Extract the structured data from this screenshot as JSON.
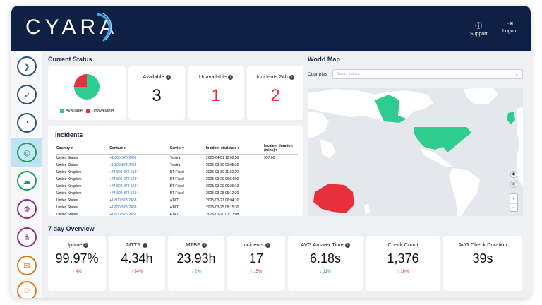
{
  "header": {
    "logo_text": "CYARA",
    "support_label": "Support",
    "logout_label": "Logout"
  },
  "colors": {
    "header_bg": "#0e2145",
    "available": "#2ecc8f",
    "unavailable": "#e8303c",
    "accent": "#2a6fb5"
  },
  "current_status": {
    "title": "Current Status",
    "legend": {
      "available": "Available",
      "unavailable": "Unavailable"
    },
    "pie": {
      "available": 75,
      "unavailable": 25
    },
    "stats": [
      {
        "label": "Available",
        "value": "3"
      },
      {
        "label": "Unavailable",
        "value": "1"
      },
      {
        "label": "Incidents 24h",
        "value": "2"
      }
    ]
  },
  "world_map": {
    "title": "World Map",
    "countries_label": "Countries",
    "countries_placeholder": "Select values",
    "zoom_in": "+",
    "zoom_out": "−"
  },
  "incidents": {
    "title": "Incidents",
    "columns": [
      "Country ▾",
      "Contact ▾",
      "Carrier ▾",
      "Incident start date ▾",
      "Incident duration (mins) ▾"
    ],
    "rows": [
      [
        "United States",
        "+1 800-573-2468",
        "Telstra",
        "2025-04-01  12:02:50",
        "357.60"
      ],
      [
        "United States",
        "+1 800-573-2468",
        "Telstra",
        "2025-03-30  02:05:30",
        ""
      ],
      [
        "United Kingdom",
        "+44 800-372-5634",
        "BT Fixed",
        "2025-03-30  11:02:20",
        ""
      ],
      [
        "United Kingdom",
        "+44 800-372-5634",
        "BT Fixed",
        "2025-03-29  06:54:00",
        ""
      ],
      [
        "United Kingdom",
        "+44 800-372-5634",
        "BT Fixed",
        "2025-03-29  09:26:10",
        ""
      ],
      [
        "United Kingdom",
        "+44 800-372-5634",
        "BT Fixed",
        "2025-03-28  05:12:30",
        ""
      ],
      [
        "United States",
        "+1 800-573-2468",
        "AT&T",
        "2025-03-27  06:04:10",
        ""
      ],
      [
        "United States",
        "+1 800-573-2468",
        "AT&T",
        "2025-03-25  08:15:30",
        ""
      ],
      [
        "United States",
        "+1 800-573-2468",
        "AT&T",
        "2025-03-20  07:13:08",
        ""
      ]
    ]
  },
  "overview": {
    "title": "7 day Overview",
    "metrics": [
      {
        "label": "Uptime",
        "value": "99.97%",
        "delta": "4%",
        "dir": "up",
        "info": true
      },
      {
        "label": "MTTR",
        "value": "4.34h",
        "delta": "34%",
        "dir": "up",
        "info": true
      },
      {
        "label": "MTBF",
        "value": "23.93h",
        "delta": "2%",
        "dir": "down",
        "info": true
      },
      {
        "label": "Incidents",
        "value": "17",
        "delta": "15%",
        "dir": "up",
        "info": true
      },
      {
        "label": "AVG Answer Time",
        "value": "6.18s",
        "delta": "11%",
        "dir": "down",
        "info": true
      },
      {
        "label": "Check Count",
        "value": "1,376",
        "delta": "16%",
        "dir": "up",
        "info": false
      },
      {
        "label": "AVG Check Duration",
        "value": "39s",
        "delta": "",
        "dir": "",
        "info": false
      }
    ]
  }
}
